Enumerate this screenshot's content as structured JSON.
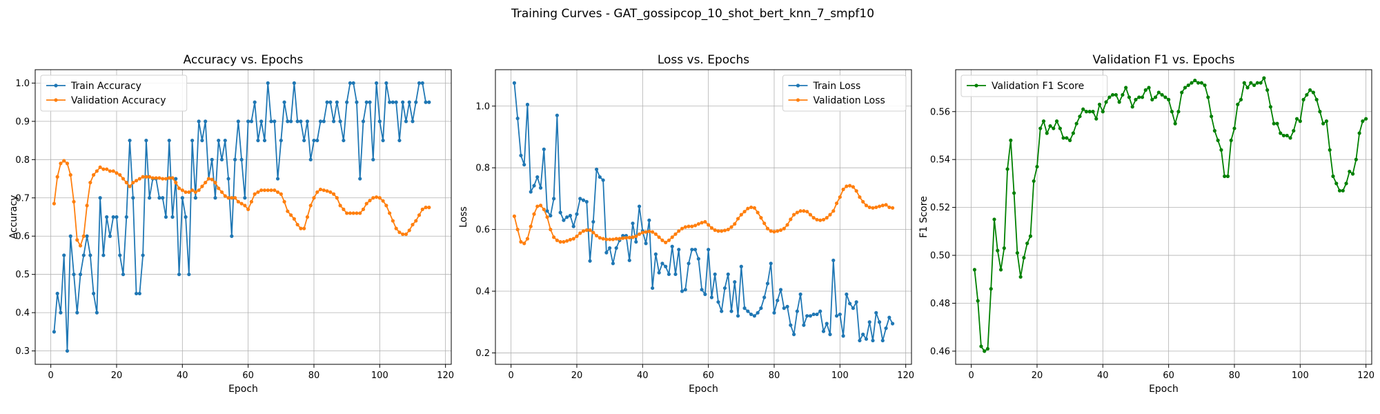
{
  "figure": {
    "title": "Training Curves - GAT_gossipcop_10_shot_bert_knn_7_smpf10"
  },
  "colors": {
    "blue": "#1f77b4",
    "orange": "#ff7f0e",
    "green": "#008000"
  },
  "chart_data": [
    {
      "type": "line",
      "title": "Accuracy vs. Epochs",
      "xlabel": "Epoch",
      "ylabel": "Accuracy",
      "xlim": [
        -4.75,
        121.75
      ],
      "ylim": [
        0.265,
        1.035
      ],
      "xticks": [
        0,
        20,
        40,
        60,
        80,
        100,
        120
      ],
      "yticks": [
        0.3,
        0.4,
        0.5,
        0.6,
        0.7,
        0.8,
        0.9,
        1.0
      ],
      "grid": true,
      "legend": "top-left",
      "x_start": 1,
      "series": [
        {
          "name": "Train Accuracy",
          "color": "#1f77b4",
          "values": [
            0.35,
            0.45,
            0.4,
            0.55,
            0.3,
            0.6,
            0.5,
            0.4,
            0.5,
            0.55,
            0.6,
            0.55,
            0.45,
            0.4,
            0.7,
            0.55,
            0.65,
            0.6,
            0.65,
            0.65,
            0.55,
            0.5,
            0.65,
            0.85,
            0.7,
            0.45,
            0.45,
            0.55,
            0.85,
            0.7,
            0.75,
            0.75,
            0.7,
            0.7,
            0.65,
            0.85,
            0.65,
            0.75,
            0.5,
            0.7,
            0.65,
            0.5,
            0.85,
            0.7,
            0.9,
            0.85,
            0.9,
            0.75,
            0.8,
            0.7,
            0.85,
            0.8,
            0.85,
            0.75,
            0.6,
            0.8,
            0.9,
            0.8,
            0.7,
            0.9,
            0.9,
            0.95,
            0.85,
            0.9,
            0.85,
            1.0,
            0.9,
            0.9,
            0.75,
            0.85,
            0.95,
            0.9,
            0.9,
            1.0,
            0.9,
            0.9,
            0.85,
            0.9,
            0.8,
            0.85,
            0.85,
            0.9,
            0.9,
            0.95,
            0.95,
            0.9,
            0.95,
            0.9,
            0.85,
            0.95,
            1.0,
            1.0,
            0.95,
            0.75,
            0.9,
            0.95,
            0.95,
            0.8,
            1.0,
            0.9,
            0.85,
            1.0,
            0.95,
            0.95,
            0.95,
            0.85,
            0.95,
            0.9,
            0.95,
            0.9,
            0.95,
            1.0,
            1.0,
            0.95,
            0.95
          ]
        },
        {
          "name": "Validation Accuracy",
          "color": "#ff7f0e",
          "values": [
            0.685,
            0.755,
            0.79,
            0.797,
            0.79,
            0.76,
            0.69,
            0.59,
            0.575,
            0.6,
            0.68,
            0.74,
            0.76,
            0.77,
            0.78,
            0.775,
            0.775,
            0.77,
            0.77,
            0.765,
            0.76,
            0.75,
            0.74,
            0.73,
            0.74,
            0.745,
            0.75,
            0.755,
            0.755,
            0.755,
            0.752,
            0.752,
            0.752,
            0.75,
            0.75,
            0.752,
            0.752,
            0.74,
            0.725,
            0.72,
            0.715,
            0.715,
            0.72,
            0.715,
            0.72,
            0.73,
            0.74,
            0.75,
            0.748,
            0.74,
            0.725,
            0.715,
            0.705,
            0.7,
            0.7,
            0.7,
            0.69,
            0.685,
            0.68,
            0.67,
            0.69,
            0.71,
            0.715,
            0.72,
            0.72,
            0.72,
            0.72,
            0.72,
            0.715,
            0.71,
            0.69,
            0.665,
            0.655,
            0.645,
            0.63,
            0.62,
            0.62,
            0.65,
            0.68,
            0.7,
            0.715,
            0.722,
            0.72,
            0.718,
            0.715,
            0.71,
            0.7,
            0.68,
            0.67,
            0.66,
            0.66,
            0.66,
            0.66,
            0.66,
            0.67,
            0.685,
            0.693,
            0.7,
            0.702,
            0.7,
            0.692,
            0.68,
            0.66,
            0.64,
            0.62,
            0.61,
            0.605,
            0.605,
            0.615,
            0.63,
            0.64,
            0.655,
            0.67,
            0.675,
            0.675
          ]
        }
      ]
    },
    {
      "type": "line",
      "title": "Loss vs. Epochs",
      "xlabel": "Epoch",
      "ylabel": "Loss",
      "xlim": [
        -4.75,
        121.75
      ],
      "ylim": [
        0.163,
        1.118
      ],
      "xticks": [
        0,
        20,
        40,
        60,
        80,
        100,
        120
      ],
      "yticks": [
        0.2,
        0.4,
        0.6,
        0.8,
        1.0
      ],
      "grid": true,
      "legend": "top-right",
      "x_start": 1,
      "series": [
        {
          "name": "Train Loss",
          "color": "#1f77b4",
          "values": [
            1.075,
            0.96,
            0.84,
            0.81,
            1.005,
            0.722,
            0.742,
            0.77,
            0.735,
            0.86,
            0.66,
            0.645,
            0.7,
            0.97,
            0.655,
            0.63,
            0.64,
            0.645,
            0.61,
            0.65,
            0.7,
            0.695,
            0.69,
            0.498,
            0.625,
            0.795,
            0.77,
            0.76,
            0.525,
            0.54,
            0.49,
            0.54,
            0.565,
            0.58,
            0.58,
            0.5,
            0.62,
            0.56,
            0.675,
            0.595,
            0.555,
            0.63,
            0.41,
            0.52,
            0.46,
            0.49,
            0.48,
            0.455,
            0.545,
            0.455,
            0.535,
            0.4,
            0.405,
            0.49,
            0.535,
            0.535,
            0.505,
            0.405,
            0.39,
            0.535,
            0.38,
            0.455,
            0.365,
            0.335,
            0.41,
            0.455,
            0.335,
            0.43,
            0.32,
            0.48,
            0.345,
            0.335,
            0.325,
            0.32,
            0.33,
            0.345,
            0.38,
            0.425,
            0.49,
            0.33,
            0.37,
            0.405,
            0.345,
            0.35,
            0.29,
            0.26,
            0.335,
            0.39,
            0.29,
            0.32,
            0.32,
            0.325,
            0.325,
            0.335,
            0.27,
            0.295,
            0.26,
            0.5,
            0.32,
            0.325,
            0.255,
            0.39,
            0.36,
            0.345,
            0.365,
            0.24,
            0.26,
            0.245,
            0.3,
            0.24,
            0.33,
            0.3,
            0.24,
            0.28,
            0.315,
            0.295
          ]
        },
        {
          "name": "Validation Loss",
          "color": "#ff7f0e",
          "values": [
            0.643,
            0.6,
            0.56,
            0.555,
            0.57,
            0.61,
            0.65,
            0.675,
            0.678,
            0.665,
            0.64,
            0.6,
            0.575,
            0.565,
            0.56,
            0.56,
            0.563,
            0.567,
            0.57,
            0.578,
            0.588,
            0.595,
            0.598,
            0.598,
            0.59,
            0.58,
            0.573,
            0.57,
            0.568,
            0.568,
            0.568,
            0.57,
            0.57,
            0.572,
            0.573,
            0.574,
            0.575,
            0.578,
            0.585,
            0.59,
            0.592,
            0.594,
            0.592,
            0.585,
            0.575,
            0.565,
            0.558,
            0.565,
            0.575,
            0.585,
            0.595,
            0.603,
            0.608,
            0.61,
            0.61,
            0.613,
            0.618,
            0.622,
            0.625,
            0.615,
            0.605,
            0.598,
            0.595,
            0.595,
            0.597,
            0.6,
            0.608,
            0.618,
            0.635,
            0.648,
            0.658,
            0.668,
            0.672,
            0.67,
            0.655,
            0.638,
            0.62,
            0.603,
            0.595,
            0.593,
            0.595,
            0.598,
            0.603,
            0.615,
            0.633,
            0.648,
            0.655,
            0.66,
            0.66,
            0.658,
            0.648,
            0.638,
            0.632,
            0.63,
            0.632,
            0.638,
            0.648,
            0.66,
            0.685,
            0.705,
            0.73,
            0.74,
            0.742,
            0.738,
            0.725,
            0.705,
            0.69,
            0.678,
            0.672,
            0.67,
            0.672,
            0.675,
            0.678,
            0.68,
            0.672,
            0.67
          ]
        }
      ]
    },
    {
      "type": "line",
      "title": "Validation F1 vs. Epochs",
      "xlabel": "Epoch",
      "ylabel": "F1 Score",
      "xlim": [
        -4.75,
        121.75
      ],
      "ylim": [
        0.4545,
        0.5775
      ],
      "xticks": [
        0,
        20,
        40,
        60,
        80,
        100,
        120
      ],
      "yticks": [
        0.46,
        0.48,
        0.5,
        0.52,
        0.54,
        0.56
      ],
      "grid": true,
      "legend": "top-left",
      "x_start": 1,
      "series": [
        {
          "name": "Validation F1 Score",
          "color": "#008000",
          "values": [
            0.494,
            0.481,
            0.462,
            0.46,
            0.461,
            0.486,
            0.515,
            0.502,
            0.494,
            0.503,
            0.536,
            0.548,
            0.526,
            0.501,
            0.491,
            0.499,
            0.505,
            0.508,
            0.531,
            0.537,
            0.553,
            0.556,
            0.551,
            0.554,
            0.553,
            0.556,
            0.553,
            0.549,
            0.549,
            0.548,
            0.551,
            0.555,
            0.558,
            0.561,
            0.56,
            0.56,
            0.56,
            0.557,
            0.563,
            0.56,
            0.564,
            0.566,
            0.567,
            0.567,
            0.564,
            0.567,
            0.57,
            0.566,
            0.562,
            0.565,
            0.566,
            0.566,
            0.569,
            0.57,
            0.565,
            0.566,
            0.568,
            0.567,
            0.566,
            0.565,
            0.56,
            0.555,
            0.56,
            0.568,
            0.57,
            0.571,
            0.572,
            0.573,
            0.572,
            0.572,
            0.571,
            0.566,
            0.558,
            0.552,
            0.548,
            0.544,
            0.533,
            0.533,
            0.548,
            0.553,
            0.563,
            0.565,
            0.572,
            0.57,
            0.572,
            0.571,
            0.572,
            0.572,
            0.574,
            0.569,
            0.562,
            0.555,
            0.555,
            0.551,
            0.55,
            0.55,
            0.549,
            0.552,
            0.557,
            0.556,
            0.565,
            0.567,
            0.569,
            0.568,
            0.565,
            0.56,
            0.555,
            0.556,
            0.544,
            0.533,
            0.53,
            0.527,
            0.527,
            0.53,
            0.535,
            0.534,
            0.54,
            0.551,
            0.556,
            0.557
          ]
        }
      ]
    }
  ]
}
